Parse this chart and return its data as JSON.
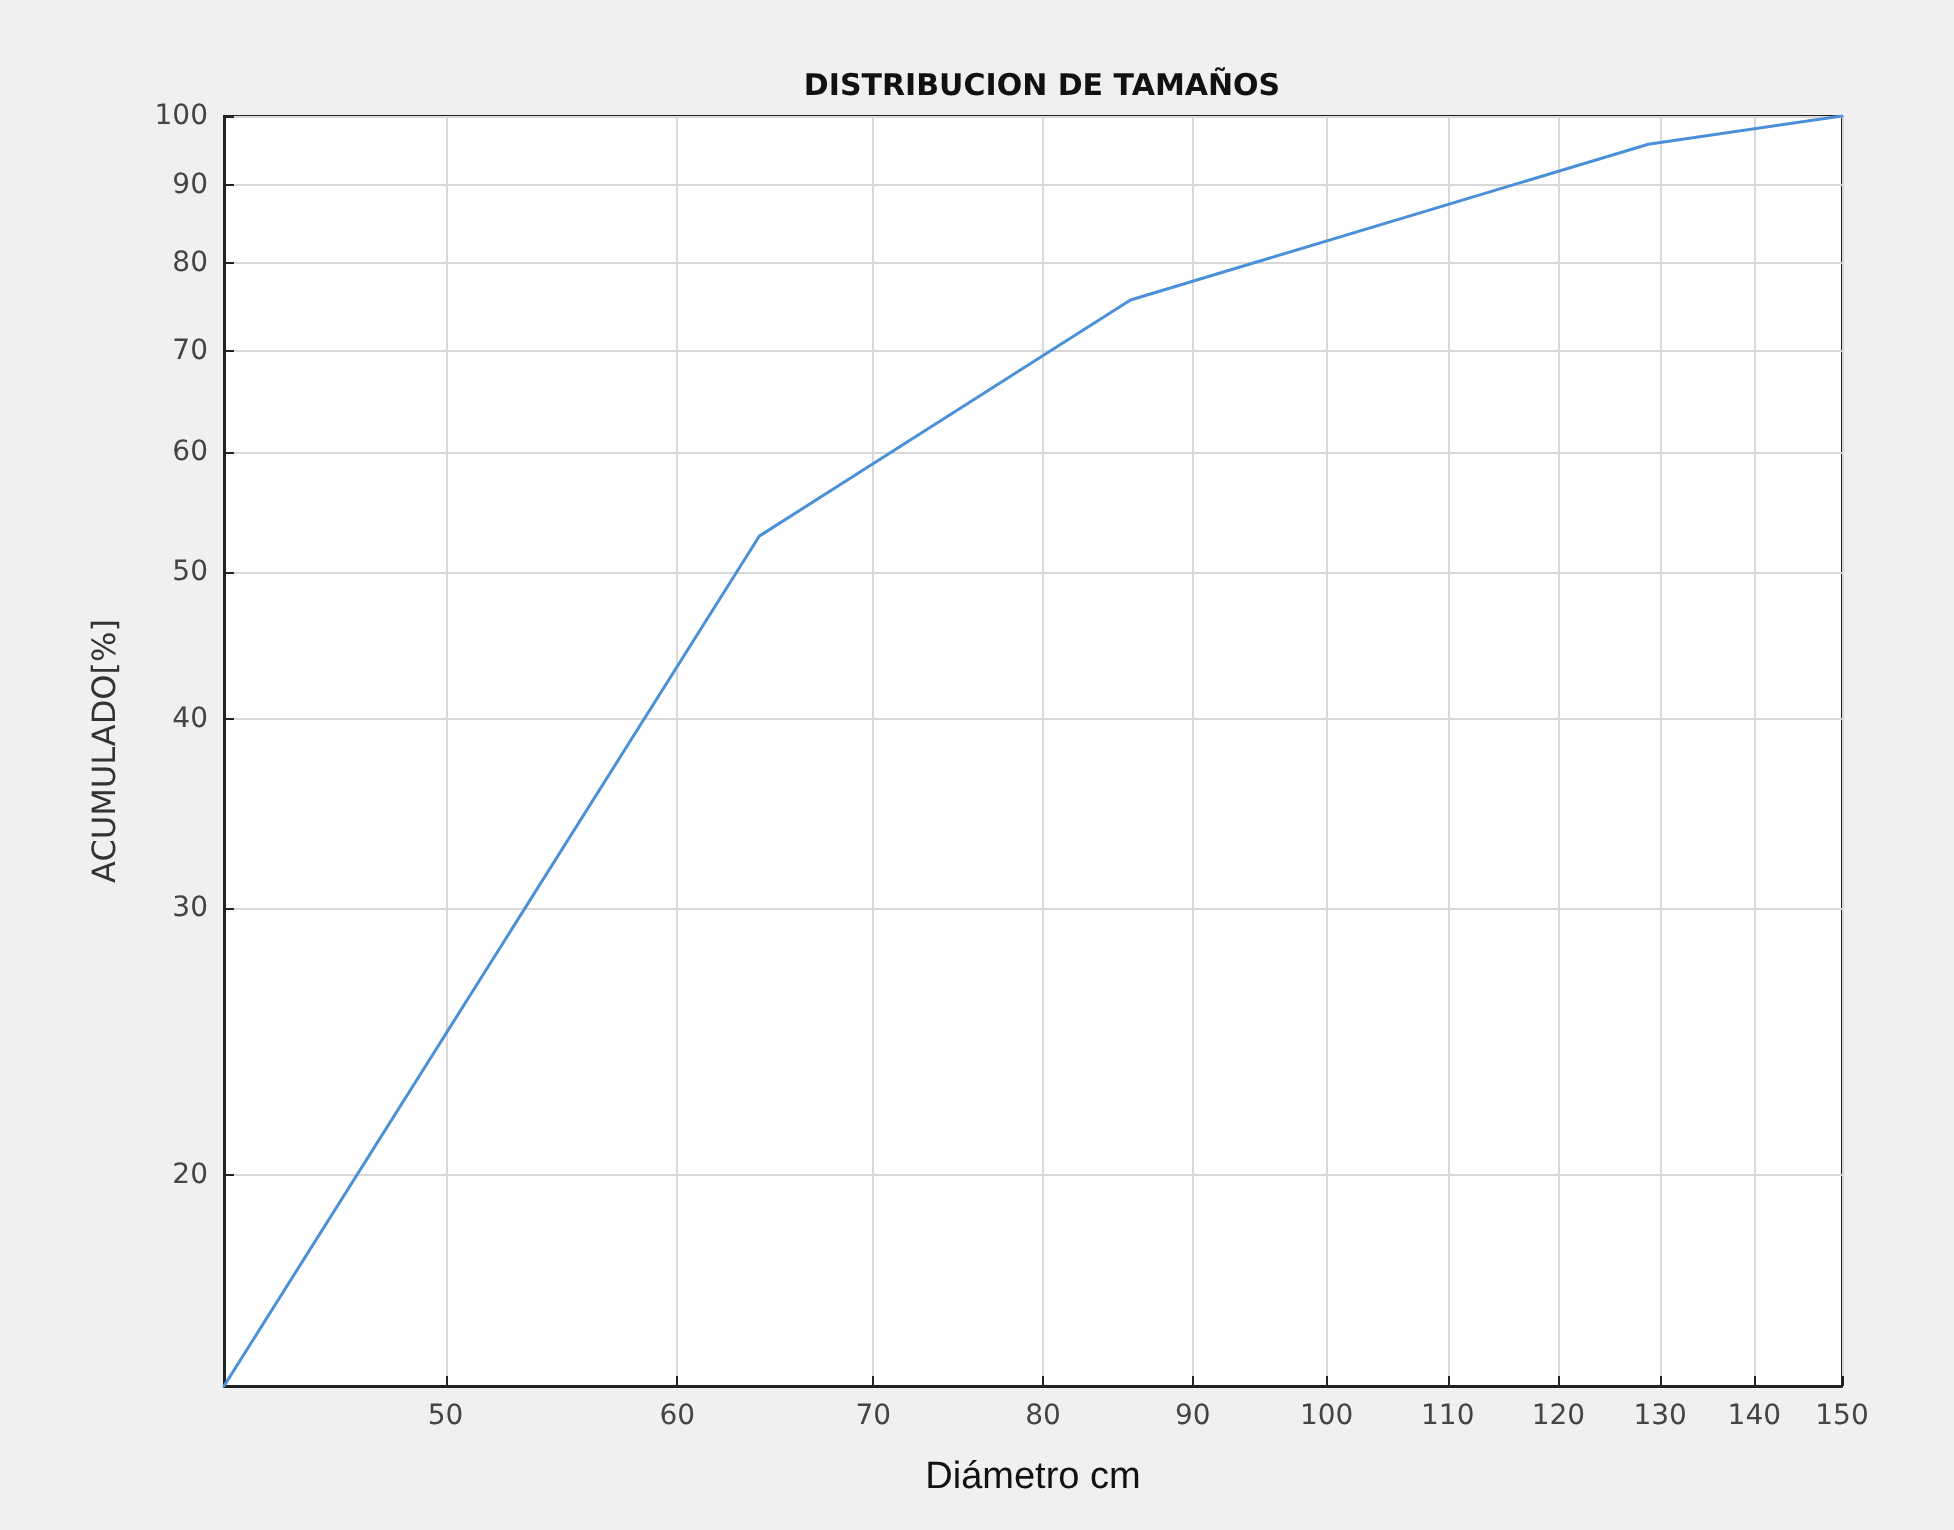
{
  "chart_data": {
    "type": "line",
    "title": "DISTRIBUCION DE TAMAÑOS",
    "xlabel": "Diámetro cm",
    "ylabel": "ACUMULADO[%]",
    "x": [
      42,
      64,
      85.7,
      128.8,
      150
    ],
    "series": [
      {
        "color": "#4a90d9",
        "values": [
          14.5,
          52.8,
          75.6,
          95.8,
          100
        ]
      }
    ],
    "log": "xy",
    "xlim": [
      42,
      150
    ],
    "ylim": [
      14.5,
      100
    ],
    "xticks": [
      50,
      60,
      70,
      80,
      90,
      100,
      110,
      120,
      130,
      140,
      150
    ],
    "yticks": [
      20,
      30,
      40,
      50,
      60,
      70,
      80,
      90,
      100
    ],
    "grid": true,
    "marker": "none",
    "line_style": "solid"
  }
}
